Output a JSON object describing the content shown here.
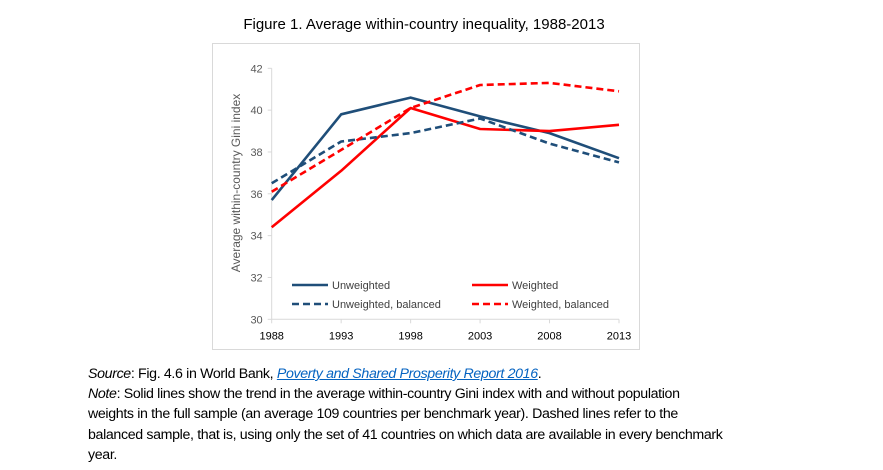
{
  "figure_title": "Figure 1. Average within-country inequality, 1988-2013",
  "chart_data": {
    "type": "line",
    "title": "",
    "xlabel": "",
    "ylabel": "Average within-country Gini index",
    "x": [
      1988,
      1993,
      1998,
      2003,
      2008,
      2013
    ],
    "x_tick_labels": [
      "1988",
      "1993",
      "1998",
      "2003",
      "2008",
      "2013"
    ],
    "ylim": [
      30,
      42
    ],
    "y_ticks": [
      30,
      32,
      34,
      36,
      38,
      40,
      42
    ],
    "y_tick_labels": [
      "30",
      "32",
      "34",
      "36",
      "38",
      "40",
      "42"
    ],
    "grid": false,
    "legend_position": "bottom (inside plot)",
    "series": [
      {
        "name": "Unweighted",
        "color": "#1f4e79",
        "dash": false,
        "values": [
          35.7,
          39.8,
          40.6,
          39.7,
          38.9,
          37.7
        ]
      },
      {
        "name": "Weighted",
        "color": "#ff0000",
        "dash": false,
        "values": [
          34.4,
          37.1,
          40.1,
          39.1,
          39.0,
          39.3
        ]
      },
      {
        "name": "Unweighted, balanced",
        "color": "#1f4e79",
        "dash": true,
        "values": [
          36.5,
          38.5,
          38.9,
          39.6,
          38.4,
          37.5
        ]
      },
      {
        "name": "Weighted, balanced",
        "color": "#ff0000",
        "dash": true,
        "values": [
          36.1,
          38.1,
          40.1,
          41.2,
          41.3,
          40.9
        ]
      }
    ]
  },
  "source": {
    "label": "Source",
    "text": ": Fig. 4.6 in World Bank, ",
    "link": "Poverty and Shared Prosperity Report 2016",
    "end": "."
  },
  "note": {
    "label": "Note",
    "lines": [
      ": Solid lines show the trend in the average within-country Gini index with and without population",
      "weights in the full sample (an average 109 countries per benchmark year). Dashed lines refer to the",
      "balanced sample, that is, using only the set of 41 countries on which data are available in every benchmark",
      "year."
    ]
  }
}
